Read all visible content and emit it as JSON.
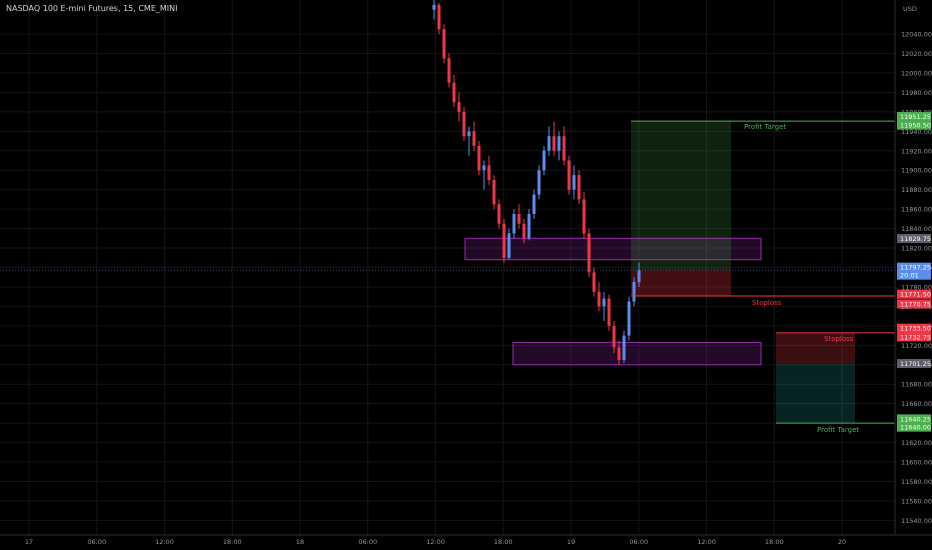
{
  "header": {
    "instrument": "NASDAQ 100 E-mini Futures, 15, CME_MINI"
  },
  "colors": {
    "background": "#000000",
    "up": "#5b8def",
    "down": "#f23645",
    "grid": "#151518",
    "profit": "#4caf50",
    "loss": "#f23645",
    "zone": "#9c27b0",
    "axis_text": "#9598a1"
  },
  "chart_data": {
    "type": "candlestick",
    "currency": "USD",
    "ylim": [
      11525,
      12075
    ],
    "y_ticks": [
      12040,
      12020,
      12000,
      11980,
      11960,
      11940,
      11920,
      11900,
      11880,
      11860,
      11840,
      11820,
      11800,
      11780,
      11760,
      11740,
      11720,
      11700,
      11680,
      11660,
      11640,
      11620,
      11600,
      11580,
      11560,
      11540
    ],
    "x_ticks": [
      "17",
      "06:00",
      "12:00",
      "18:00",
      "18",
      "06:00",
      "12:00",
      "18:00",
      "19",
      "06:00",
      "12:00",
      "18:00",
      "20"
    ],
    "price_badges": [
      {
        "text": "11951.25",
        "kind": "profit"
      },
      {
        "text": "11950.50",
        "kind": "profit"
      },
      {
        "text": "11829.75",
        "kind": "neutral"
      },
      {
        "text": "11797.25",
        "kind": "current"
      },
      {
        "text": "20:01",
        "kind": "current"
      },
      {
        "text": "11771.50",
        "kind": "loss"
      },
      {
        "text": "11770.75",
        "kind": "loss"
      },
      {
        "text": "11733.50",
        "kind": "loss"
      },
      {
        "text": "11732.75",
        "kind": "loss"
      },
      {
        "text": "11701.25",
        "kind": "neutral"
      },
      {
        "text": "11640.25",
        "kind": "profit"
      },
      {
        "text": "11640.00",
        "kind": "profit"
      }
    ],
    "annotations": [
      "Profit Target",
      "Stoploss",
      "Stoploss",
      "Profit Target"
    ],
    "position_long": {
      "entry": 11797.25,
      "target": 11950.5,
      "stop": 11770.75
    },
    "position_short": {
      "entry": 11701.25,
      "target": 11640,
      "stop": 11732.75
    },
    "zones": [
      {
        "top": 11830,
        "bottom": 11808
      },
      {
        "top": 11723,
        "bottom": 11700
      }
    ],
    "current_price": 11797.25,
    "ohlc": [
      [
        12065,
        12075,
        12055,
        12070
      ],
      [
        12070,
        12072,
        12040,
        12045
      ],
      [
        12045,
        12050,
        12010,
        12015
      ],
      [
        12015,
        12020,
        11985,
        11990
      ],
      [
        11990,
        11998,
        11965,
        11970
      ],
      [
        11970,
        11980,
        11950,
        11960
      ],
      [
        11960,
        11965,
        11930,
        11935
      ],
      [
        11935,
        11945,
        11915,
        11940
      ],
      [
        11940,
        11950,
        11920,
        11925
      ],
      [
        11925,
        11930,
        11895,
        11900
      ],
      [
        11900,
        11910,
        11880,
        11905
      ],
      [
        11905,
        11915,
        11885,
        11890
      ],
      [
        11890,
        11895,
        11860,
        11865
      ],
      [
        11865,
        11870,
        11840,
        11845
      ],
      [
        11845,
        11850,
        11805,
        11810
      ],
      [
        11810,
        11840,
        11808,
        11835
      ],
      [
        11835,
        11860,
        11830,
        11855
      ],
      [
        11855,
        11865,
        11840,
        11845
      ],
      [
        11845,
        11850,
        11825,
        11830
      ],
      [
        11830,
        11860,
        11828,
        11855
      ],
      [
        11855,
        11880,
        11850,
        11875
      ],
      [
        11875,
        11905,
        11870,
        11900
      ],
      [
        11900,
        11925,
        11895,
        11920
      ],
      [
        11920,
        11945,
        11915,
        11935
      ],
      [
        11935,
        11950,
        11915,
        11920
      ],
      [
        11920,
        11940,
        11910,
        11935
      ],
      [
        11935,
        11945,
        11905,
        11910
      ],
      [
        11910,
        11915,
        11875,
        11880
      ],
      [
        11880,
        11905,
        11870,
        11895
      ],
      [
        11895,
        11900,
        11865,
        11870
      ],
      [
        11870,
        11878,
        11830,
        11835
      ],
      [
        11835,
        11840,
        11790,
        11795
      ],
      [
        11795,
        11800,
        11770,
        11775
      ],
      [
        11775,
        11785,
        11755,
        11760
      ],
      [
        11760,
        11775,
        11745,
        11768
      ],
      [
        11768,
        11772,
        11735,
        11740
      ],
      [
        11740,
        11745,
        11712,
        11718
      ],
      [
        11718,
        11725,
        11700,
        11705
      ],
      [
        11705,
        11735,
        11702,
        11730
      ],
      [
        11730,
        11770,
        11725,
        11765
      ],
      [
        11765,
        11790,
        11760,
        11785
      ],
      [
        11785,
        11805,
        11780,
        11797
      ]
    ]
  }
}
